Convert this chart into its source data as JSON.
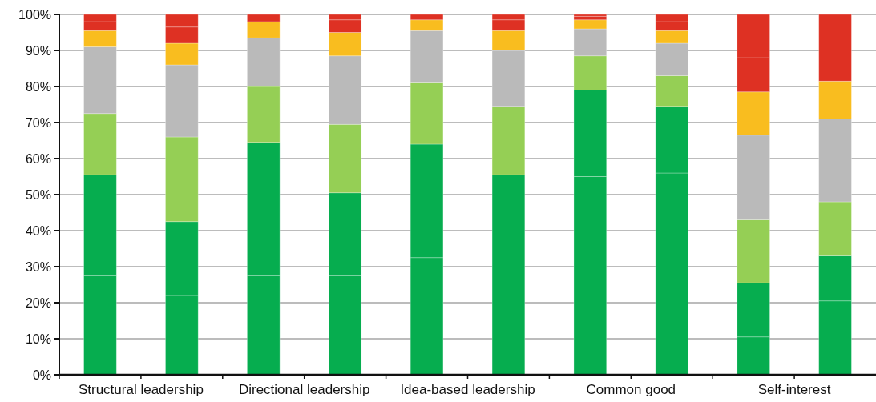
{
  "chart_data": {
    "type": "bar",
    "stacked": true,
    "categories": [
      "Structural leadership",
      null,
      "Directional leadership",
      null,
      "Idea-based leadership",
      null,
      "Common good",
      null,
      "Self-interest",
      null
    ],
    "series": [
      {
        "color": "#06ad4f",
        "values": [
          27.5,
          22,
          27.5,
          27.5,
          32.5,
          31,
          55,
          56,
          10.5,
          20.5
        ]
      },
      {
        "color": "#06ad4f",
        "values": [
          28,
          20.5,
          37,
          23,
          31.5,
          24.5,
          24,
          18.5,
          15,
          12.5
        ]
      },
      {
        "color": "#95cf55",
        "values": [
          17,
          23.5,
          15.5,
          19,
          17,
          19,
          9.5,
          8.5,
          17.5,
          15
        ]
      },
      {
        "color": "#bababa",
        "values": [
          18.5,
          20,
          13.5,
          19,
          14.5,
          15.5,
          7.5,
          9,
          23.5,
          23
        ]
      },
      {
        "color": "#f9bd1f",
        "values": [
          4.5,
          6,
          4.5,
          6.5,
          3,
          5.5,
          2.5,
          3.5,
          12,
          10.5
        ]
      },
      {
        "color": "#de3123",
        "values": [
          2.5,
          4.5,
          2,
          3.5,
          1.5,
          3,
          1,
          2.5,
          9.5,
          7.5
        ]
      },
      {
        "color": "#de3123",
        "values": [
          2,
          3.5,
          null,
          1.5,
          null,
          1.5,
          0.5,
          2,
          12,
          11
        ]
      }
    ],
    "ylim": [
      0,
      100
    ],
    "yticks": [
      {
        "value": 0,
        "label": "0%"
      },
      {
        "value": 10,
        "label": "10%"
      },
      {
        "value": 20,
        "label": "20%"
      },
      {
        "value": 30,
        "label": "30%"
      },
      {
        "value": 40,
        "label": "40%"
      },
      {
        "value": 50,
        "label": "50%"
      },
      {
        "value": 60,
        "label": "60%"
      },
      {
        "value": 70,
        "label": "70%"
      },
      {
        "value": 80,
        "label": "80%"
      },
      {
        "value": 90,
        "label": "90%"
      },
      {
        "value": 100,
        "label": "100%"
      }
    ],
    "grid": "y"
  }
}
